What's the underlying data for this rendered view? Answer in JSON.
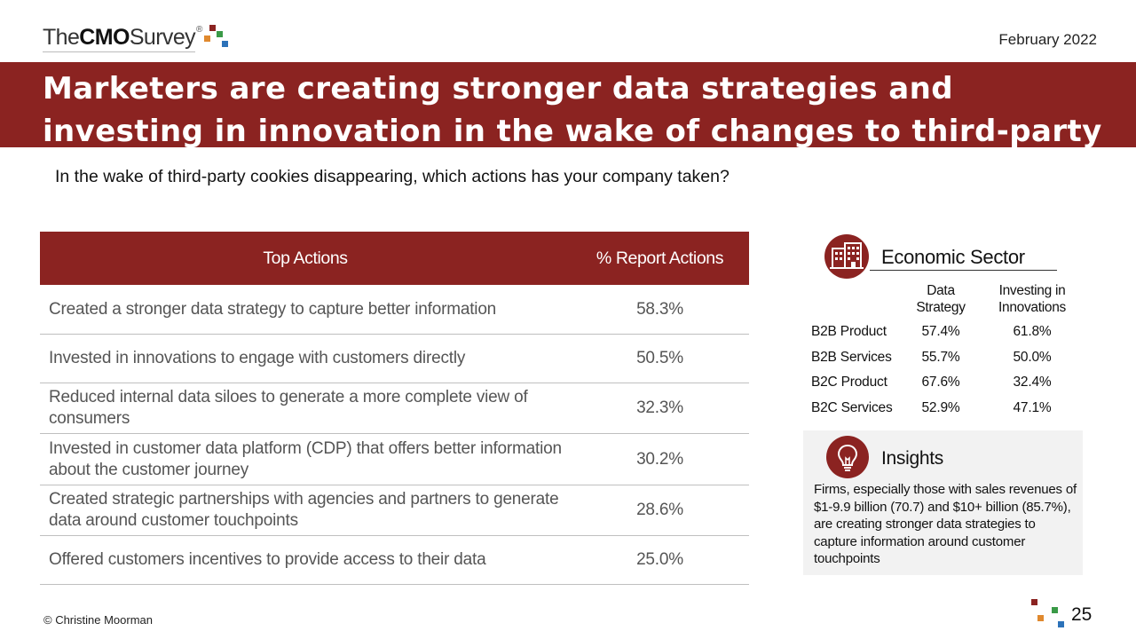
{
  "header": {
    "logo": {
      "the": "The",
      "cmo": "CMO",
      "survey": "Survey",
      "reg": "®"
    },
    "date": "February 2022"
  },
  "title": "Marketers are creating stronger data strategies and investing in innovation in the wake of changes to third-party data",
  "question": "In the wake of third-party cookies disappearing, which actions has your company taken?",
  "actions_table": {
    "headers": {
      "action": "Top Actions",
      "pct": "% Report Actions"
    },
    "rows": [
      {
        "action": "Created a stronger data strategy to capture better information",
        "pct": "58.3%"
      },
      {
        "action": "Invested in innovations to engage with customers directly",
        "pct": "50.5%"
      },
      {
        "action": "Reduced internal data siloes to generate a more complete view of consumers",
        "pct": "32.3%"
      },
      {
        "action": "Invested in customer data platform (CDP) that offers better information about the customer journey",
        "pct": "30.2%"
      },
      {
        "action": "Created strategic partnerships with agencies and partners to generate data around customer touchpoints",
        "pct": "28.6%"
      },
      {
        "action": "Offered customers incentives to provide access to their data",
        "pct": "25.0%"
      }
    ]
  },
  "sector": {
    "title": "Economic Sector",
    "icon": "building-icon",
    "col_data": "Data Strategy",
    "col_invest": "Investing in Innovations",
    "rows": [
      {
        "name": "B2B Product",
        "data": "57.4%",
        "invest": "61.8%"
      },
      {
        "name": "B2B Services",
        "data": "55.7%",
        "invest": "50.0%"
      },
      {
        "name": "B2C Product",
        "data": "67.6%",
        "invest": "32.4%"
      },
      {
        "name": "B2C Services",
        "data": "52.9%",
        "invest": "47.1%"
      }
    ]
  },
  "insights": {
    "title": "Insights",
    "icon": "lightbulb-icon",
    "text": "Firms, especially those with sales revenues of $1-9.9 billion (70.7) and $10+ billion (85.7%), are creating stronger data strategies to capture information around customer touchpoints"
  },
  "footer": {
    "copyright": "© Christine Moorman",
    "page": "25"
  },
  "colors": {
    "brand_red": "#8b2321",
    "logo_dark_red": "#8b2321",
    "logo_orange": "#e0892e",
    "logo_green": "#3a9a47",
    "logo_blue": "#2c72b9"
  }
}
